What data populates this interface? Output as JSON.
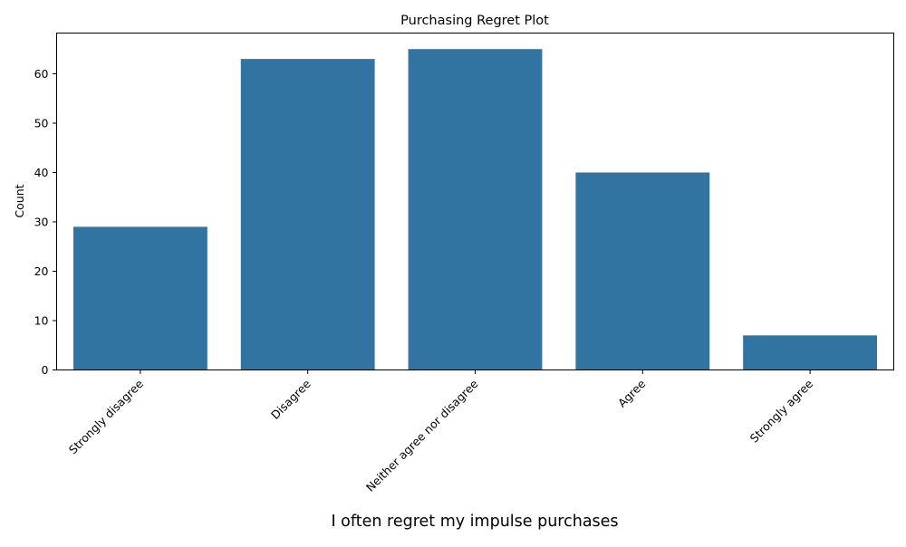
{
  "chart_data": {
    "type": "bar",
    "title": "Purchasing Regret Plot",
    "xlabel": "I often regret my impulse purchases",
    "ylabel": "Count",
    "categories": [
      "Strongly disagree",
      "Disagree",
      "Neither agree nor disagree",
      "Agree",
      "Strongly agree"
    ],
    "values": [
      29,
      63,
      65,
      40,
      7
    ],
    "ylim": [
      0,
      68.25
    ],
    "yticks": [
      0,
      10,
      20,
      30,
      40,
      50,
      60
    ],
    "bar_color": "#3274a1",
    "grid": false,
    "legend": "none"
  }
}
